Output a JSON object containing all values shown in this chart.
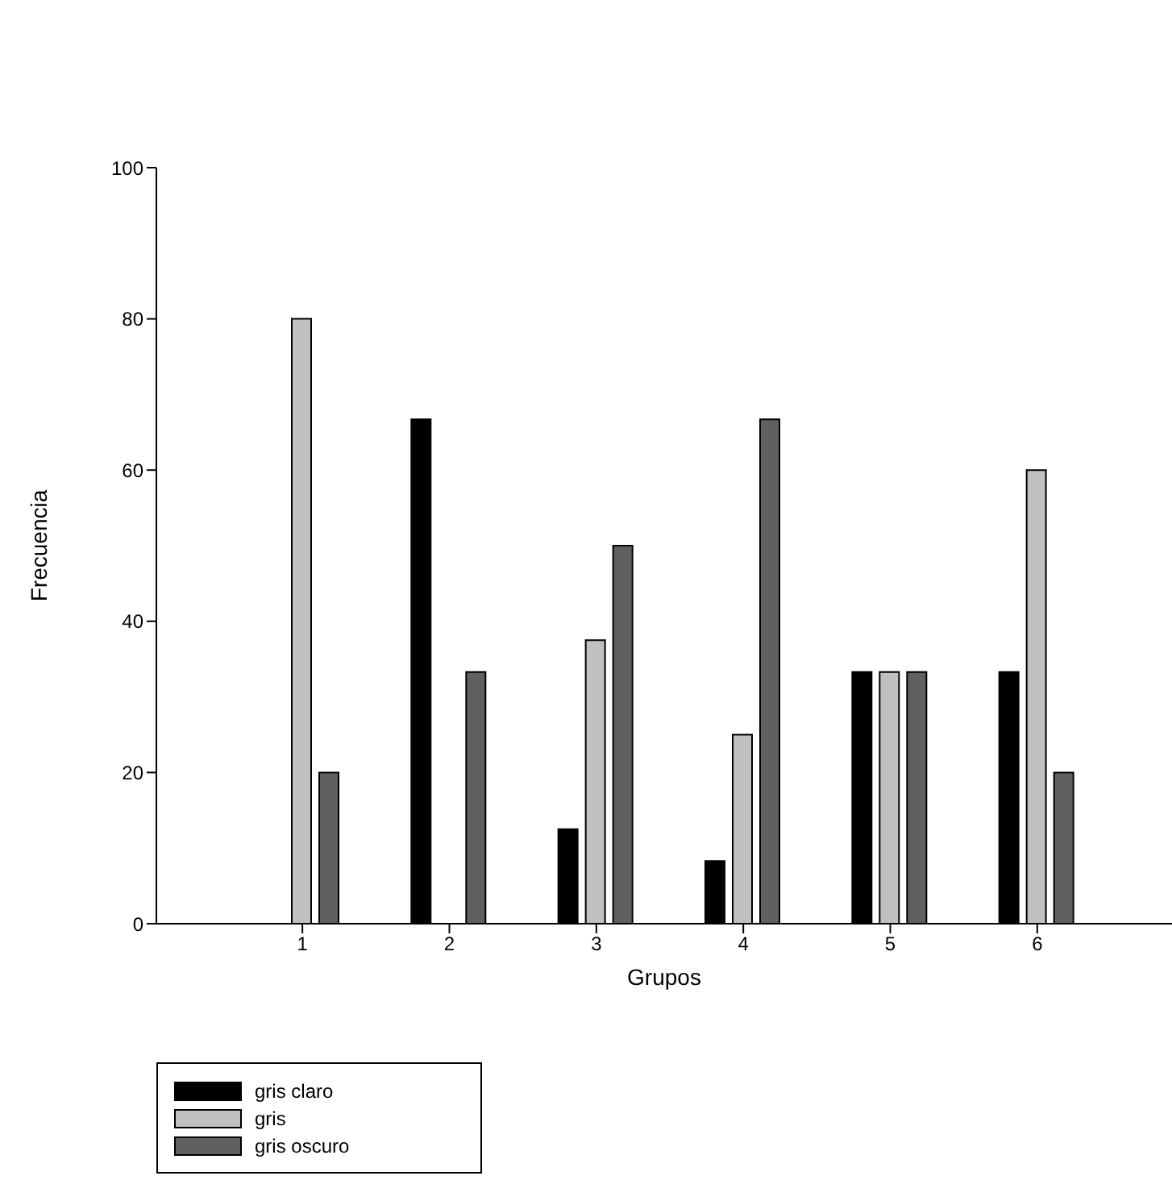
{
  "chart_data": {
    "type": "bar",
    "xlabel": "Grupos",
    "ylabel": "Frecuencia",
    "categories": [
      "1",
      "2",
      "3",
      "4",
      "5",
      "6"
    ],
    "series": [
      {
        "name": "gris claro",
        "color": "#000000",
        "values": [
          0,
          66.7,
          12.5,
          8.3,
          33.3,
          33.3
        ]
      },
      {
        "name": "gris",
        "color": "#c0c0c0",
        "values": [
          80,
          0,
          37.5,
          25,
          33.3,
          60
        ]
      },
      {
        "name": "gris oscuro",
        "color": "#606060",
        "values": [
          20,
          33.3,
          50,
          66.7,
          33.3,
          20
        ]
      }
    ],
    "ylim": [
      0,
      100
    ],
    "yticks": [
      0,
      20,
      40,
      60,
      80,
      100
    ],
    "grid": false,
    "legend": "bottom left"
  }
}
